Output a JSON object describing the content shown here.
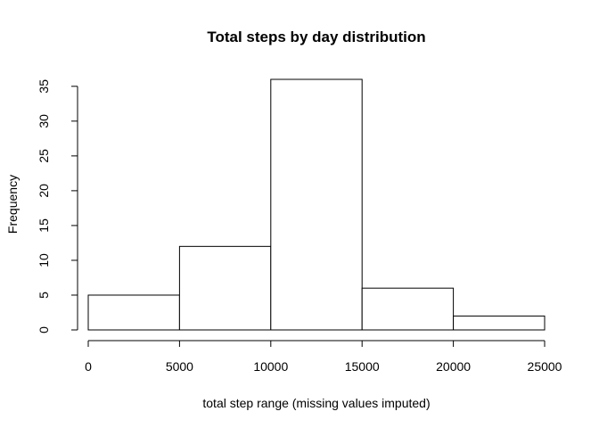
{
  "chart_data": {
    "type": "histogram",
    "title": "Total steps by day distribution",
    "xlabel": "total step range (missing values imputed)",
    "ylabel": "Frequency",
    "bins": [
      {
        "start": 0,
        "end": 5000,
        "count": 5
      },
      {
        "start": 5000,
        "end": 10000,
        "count": 12
      },
      {
        "start": 10000,
        "end": 15000,
        "count": 36
      },
      {
        "start": 15000,
        "end": 20000,
        "count": 6
      },
      {
        "start": 20000,
        "end": 25000,
        "count": 2
      }
    ],
    "xlim": [
      0,
      25000
    ],
    "ylim": [
      0,
      36
    ],
    "x_ticks": [
      0,
      5000,
      10000,
      15000,
      20000,
      25000
    ],
    "y_ticks": [
      0,
      5,
      10,
      15,
      20,
      25,
      30,
      35
    ],
    "grid": false,
    "bar_fill": "#ffffff",
    "bar_stroke": "#000000"
  }
}
